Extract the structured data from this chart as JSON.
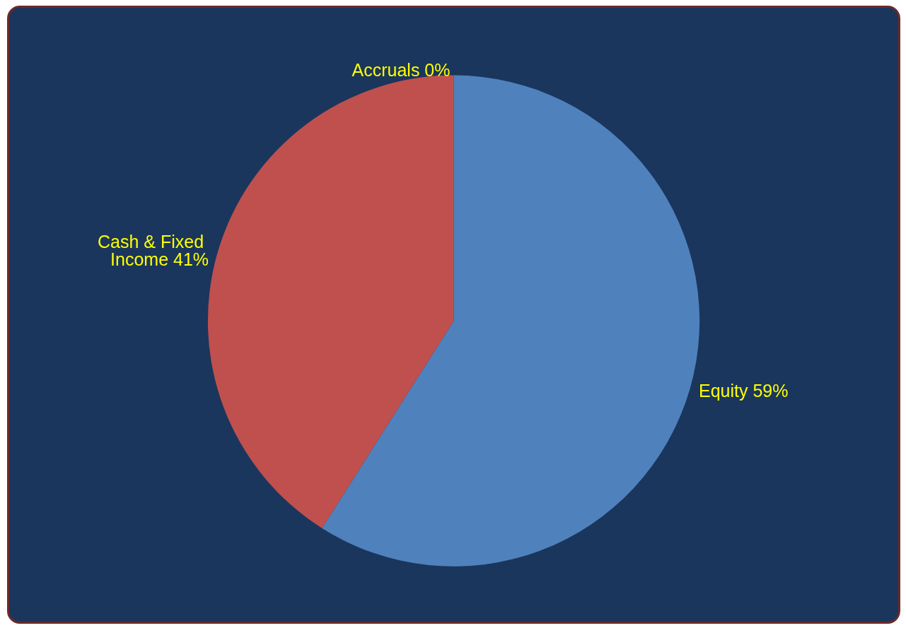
{
  "chart_data": {
    "type": "pie",
    "categories": [
      "Accruals",
      "Equity",
      "Cash & Fixed Income"
    ],
    "values": [
      0,
      59,
      41
    ],
    "value_labels": [
      "0%",
      "59%",
      "41%"
    ],
    "colors": [
      "#9bbb59",
      "#4f81bd",
      "#c0504d"
    ],
    "legend": false
  }
}
